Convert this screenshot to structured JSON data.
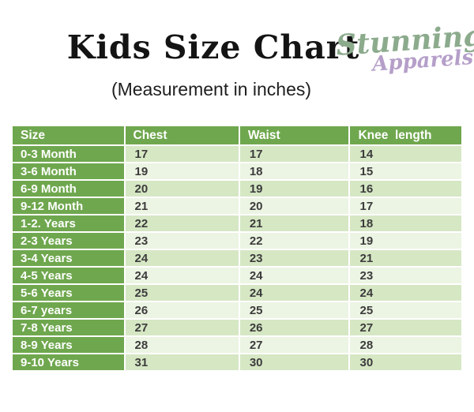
{
  "page": {
    "title": "Kids Size Chart",
    "subtitle": "(Measurement in inches)"
  },
  "logo": {
    "line1": "Stunning",
    "line2": "Apparels",
    "line1_color": "#8cab8d",
    "line2_color": "#b59fc9"
  },
  "table": {
    "columns": [
      "Size",
      "Chest",
      "Waist",
      "Knee  length"
    ],
    "rows": [
      {
        "size": "0-3 Month",
        "chest": "17",
        "waist": "17",
        "knee": "14"
      },
      {
        "size": "3-6 Month",
        "chest": "19",
        "waist": "18",
        "knee": "15"
      },
      {
        "size": "6-9 Month",
        "chest": "20",
        "waist": "19",
        "knee": "16"
      },
      {
        "size": "9-12 Month",
        "chest": "21",
        "waist": "20",
        "knee": "17"
      },
      {
        "size": "1-2. Years",
        "chest": "22",
        "waist": "21",
        "knee": "18"
      },
      {
        "size": "2-3 Years",
        "chest": "23",
        "waist": "22",
        "knee": "19"
      },
      {
        "size": "3-4 Years",
        "chest": "24",
        "waist": "23",
        "knee": "21"
      },
      {
        "size": "4-5 Years",
        "chest": "24",
        "waist": "24",
        "knee": "23"
      },
      {
        "size": "5-6 Years",
        "chest": "25",
        "waist": "24",
        "knee": "24"
      },
      {
        "size": "6-7 years",
        "chest": "26",
        "waist": "25",
        "knee": "25"
      },
      {
        "size": "7-8 Years",
        "chest": "27",
        "waist": "26",
        "knee": "27"
      },
      {
        "size": "8-9 Years",
        "chest": "28",
        "waist": "27",
        "knee": "28"
      },
      {
        "size": "9-10 Years",
        "chest": "31",
        "waist": "30",
        "knee": "30"
      }
    ],
    "colors": {
      "header_bg": "#6fa74e",
      "header_text": "#ffffff",
      "row_a_bg": "#d6e7c4",
      "row_b_bg": "#ecf4e3",
      "cell_text": "#3c3c3c"
    }
  }
}
